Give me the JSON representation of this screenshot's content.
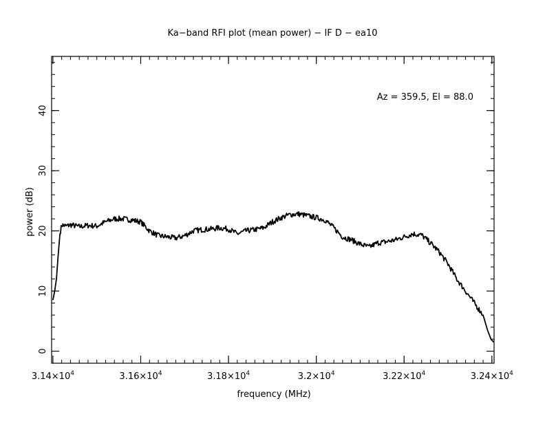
{
  "chart_data": {
    "type": "line",
    "title": "Ka−band RFI plot (mean power) − IF D − ea10",
    "xlabel": "frequency (MHz)",
    "ylabel": "power (dB)",
    "annotation": "Az = 359.5, El = 88.0",
    "xlim": [
      31397,
      32405
    ],
    "ylim": [
      -2,
      49
    ],
    "x_ticks": [
      {
        "value": 31400,
        "label": "3.14×10",
        "exp": "4"
      },
      {
        "value": 31600,
        "label": "3.16×10",
        "exp": "4"
      },
      {
        "value": 31800,
        "label": "3.18×10",
        "exp": "4"
      },
      {
        "value": 32000,
        "label": "3.2×10",
        "exp": "4"
      },
      {
        "value": 32200,
        "label": "3.22×10",
        "exp": "4"
      },
      {
        "value": 32400,
        "label": "3.24×10",
        "exp": "4"
      }
    ],
    "y_ticks": [
      {
        "value": 0,
        "label": "0"
      },
      {
        "value": 10,
        "label": "10"
      },
      {
        "value": 20,
        "label": "20"
      },
      {
        "value": 30,
        "label": "30"
      },
      {
        "value": 40,
        "label": "40"
      }
    ],
    "series": [
      {
        "color": "#000000",
        "x": [
          31400,
          31404,
          31408,
          31412,
          31416,
          31420,
          31430,
          31440,
          31460,
          31480,
          31500,
          31520,
          31540,
          31560,
          31580,
          31600,
          31620,
          31640,
          31660,
          31680,
          31700,
          31720,
          31740,
          31760,
          31780,
          31800,
          31820,
          31840,
          31860,
          31880,
          31900,
          31920,
          31940,
          31960,
          31980,
          32000,
          32020,
          32040,
          32060,
          32080,
          32100,
          32120,
          32140,
          32160,
          32180,
          32200,
          32220,
          32240,
          32260,
          32280,
          32300,
          32320,
          32340,
          32360,
          32380,
          32390,
          32398,
          32404
        ],
        "y": [
          8.5,
          10.0,
          12.0,
          16.0,
          19.5,
          21.0,
          20.8,
          21.0,
          20.7,
          20.9,
          20.8,
          21.5,
          22.0,
          22.0,
          21.8,
          21.5,
          20.0,
          19.2,
          19.0,
          18.8,
          19.2,
          20.0,
          20.2,
          20.3,
          20.5,
          20.3,
          19.5,
          20.0,
          20.2,
          20.5,
          21.5,
          22.2,
          22.7,
          22.8,
          22.5,
          22.2,
          21.8,
          20.5,
          19.0,
          18.5,
          17.8,
          17.3,
          18.0,
          18.2,
          18.5,
          19.0,
          19.5,
          19.3,
          18.0,
          16.5,
          14.5,
          12.0,
          10.0,
          8.0,
          6.0,
          3.5,
          2.0,
          1.5
        ]
      }
    ]
  }
}
